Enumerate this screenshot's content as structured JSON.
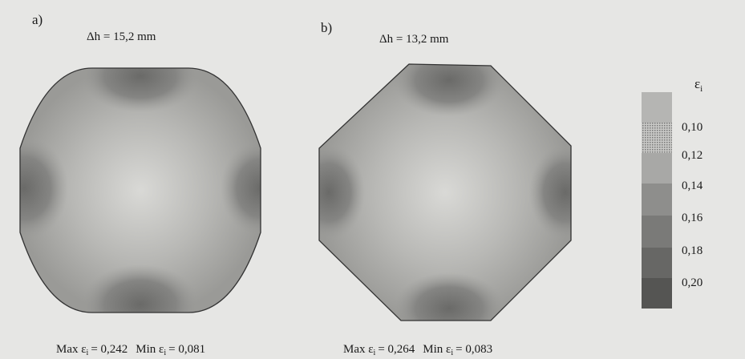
{
  "panel_a": {
    "letter": "a)",
    "height_label": "Δh = 15,2 mm",
    "caption": {
      "max_label": "Max ε",
      "sub": "i",
      "max_value": "= 0,242",
      "min_label": "Min ε",
      "min_value": "= 0,081"
    }
  },
  "panel_b": {
    "letter": "b)",
    "height_label": "Δh = 13,2 mm",
    "caption": {
      "max_label": "Max ε",
      "sub": "i",
      "max_value": "= 0,264",
      "min_label": "Min ε",
      "min_value": "= 0,083"
    }
  },
  "legend": {
    "symbol": "ε",
    "sub": "i",
    "labels": [
      "0,10",
      "0,12",
      "0,14",
      "0,16",
      "0,18",
      "0,20"
    ]
  }
}
